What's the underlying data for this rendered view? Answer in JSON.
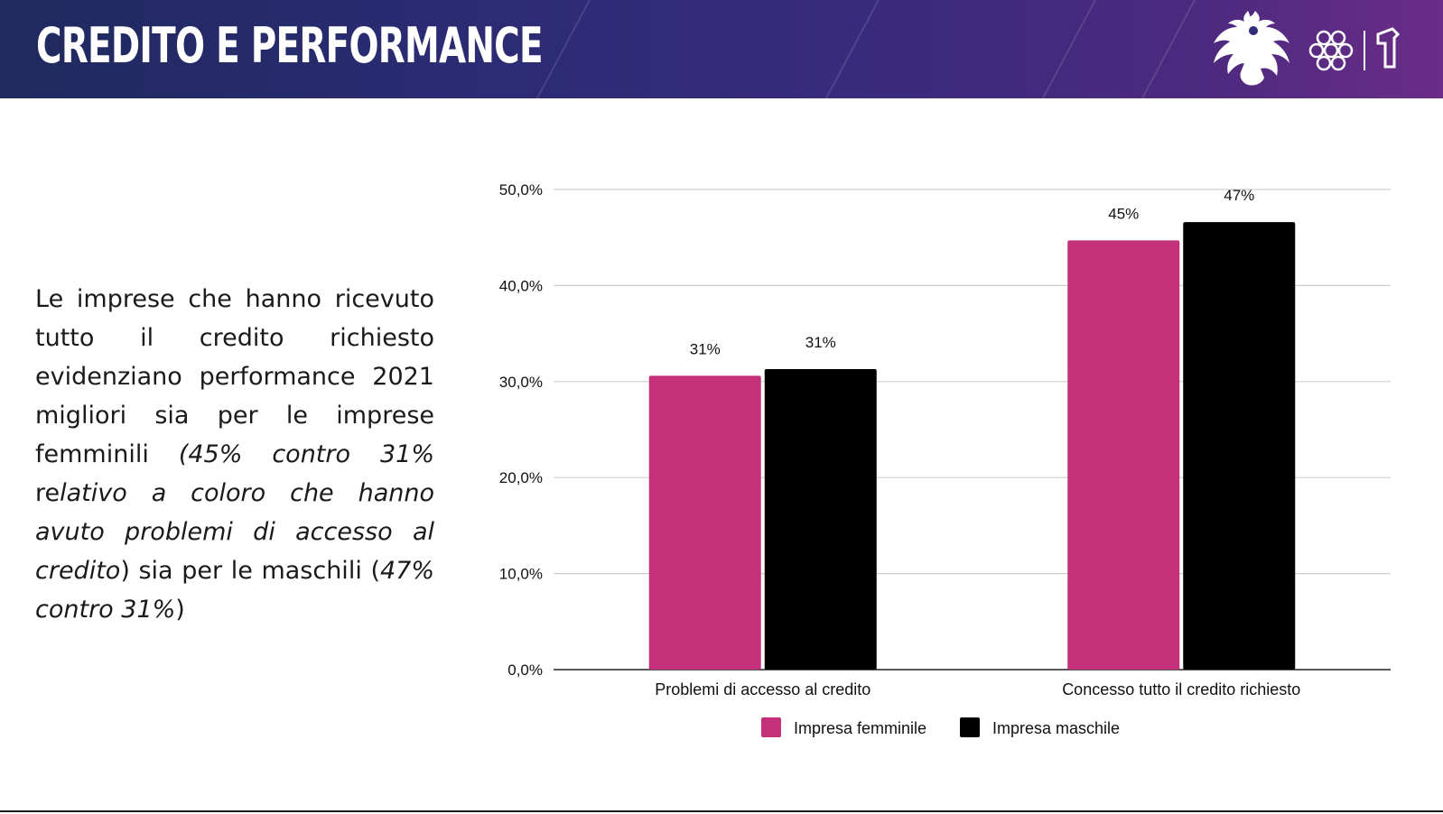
{
  "header": {
    "title": "CREDITO E PERFORMANCE"
  },
  "logos": {
    "left_icon": "eagle-emblem-icon",
    "middle_icon": "knot-symbol-icon",
    "right_icon": "flag-mark-icon"
  },
  "description": {
    "t1": "Le imprese che hanno ricevuto tutto il credito richiesto evidenziano performance 2021 migliori sia per le imprese femminili ",
    "t2": "(45% contro 31% ",
    "t3": "re",
    "t4": "lativo a coloro che hanno avuto problemi di accesso al credito",
    "t5": ") sia per le maschili (",
    "t6": "47% contro 31%",
    "t7": ")"
  },
  "chart_data": {
    "type": "bar",
    "categories": [
      "Problemi di accesso al credito",
      "Concesso tutto il credito richiesto"
    ],
    "series": [
      {
        "name": "Impresa femminile",
        "color": "#c4307a",
        "values": [
          30.6,
          44.7
        ],
        "labels": [
          "31%",
          "45%"
        ]
      },
      {
        "name": "Impresa maschile",
        "color": "#000000",
        "values": [
          31.3,
          46.6
        ],
        "labels": [
          "31%",
          "47%"
        ]
      }
    ],
    "yticks": [
      "0,0%",
      "10,0%",
      "20,0%",
      "30,0%",
      "40,0%",
      "50,0%"
    ],
    "ylim": [
      0,
      50
    ],
    "grid": true,
    "legend": "bottom"
  }
}
